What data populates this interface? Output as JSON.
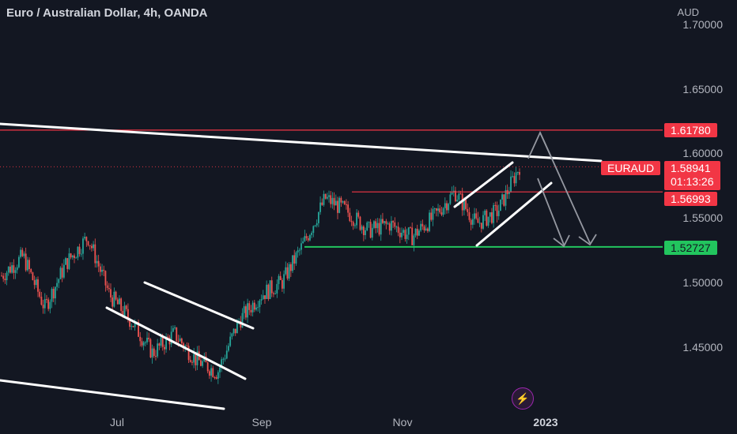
{
  "header": {
    "title": "Euro / Australian Dollar, 4h, OANDA",
    "currency": "AUD"
  },
  "price_axis": [
    "1.70000",
    "1.65000",
    "1.60000",
    "1.55000",
    "1.50000",
    "1.45000"
  ],
  "time_axis": [
    "Jul",
    "Sep",
    "Nov",
    "2023"
  ],
  "tags": {
    "resistance": "1.61780",
    "symbol": "EURAUD",
    "last": "1.58941",
    "countdown": "01:13:26",
    "mid": "1.56993",
    "support": "1.52727"
  },
  "colors": {
    "background": "#131722",
    "up": "#26a69a",
    "down": "#ef5350",
    "resistance_line": "#f23645",
    "support_line": "#22c55e",
    "trendline": "#ffffff",
    "arrows": "#9598a1"
  },
  "icons": {
    "alert": "lightning-bolt-icon"
  },
  "chart_data": {
    "type": "candlestick",
    "title": "Euro / Australian Dollar, 4h, OANDA",
    "y_unit": "AUD",
    "ylim": [
      1.42,
      1.71
    ],
    "x_ticks": [
      "Jul",
      "Sep",
      "Nov",
      "2023"
    ],
    "y_ticks": [
      1.45,
      1.5,
      1.55,
      1.6,
      1.65,
      1.7
    ],
    "approx_closes": [
      1.505,
      1.52,
      1.48,
      1.515,
      1.535,
      1.49,
      1.47,
      1.445,
      1.46,
      1.44,
      1.43,
      1.47,
      1.49,
      1.5,
      1.53,
      1.565,
      1.555,
      1.54,
      1.545,
      1.535,
      1.55,
      1.57,
      1.545,
      1.555,
      1.59
    ],
    "horizontal_levels": [
      {
        "value": 1.6178,
        "color": "#f23645"
      },
      {
        "value": 1.56993,
        "color": "#f23645"
      },
      {
        "value": 1.52727,
        "color": "#22c55e"
      }
    ],
    "last_price": 1.58941,
    "grid": false
  }
}
